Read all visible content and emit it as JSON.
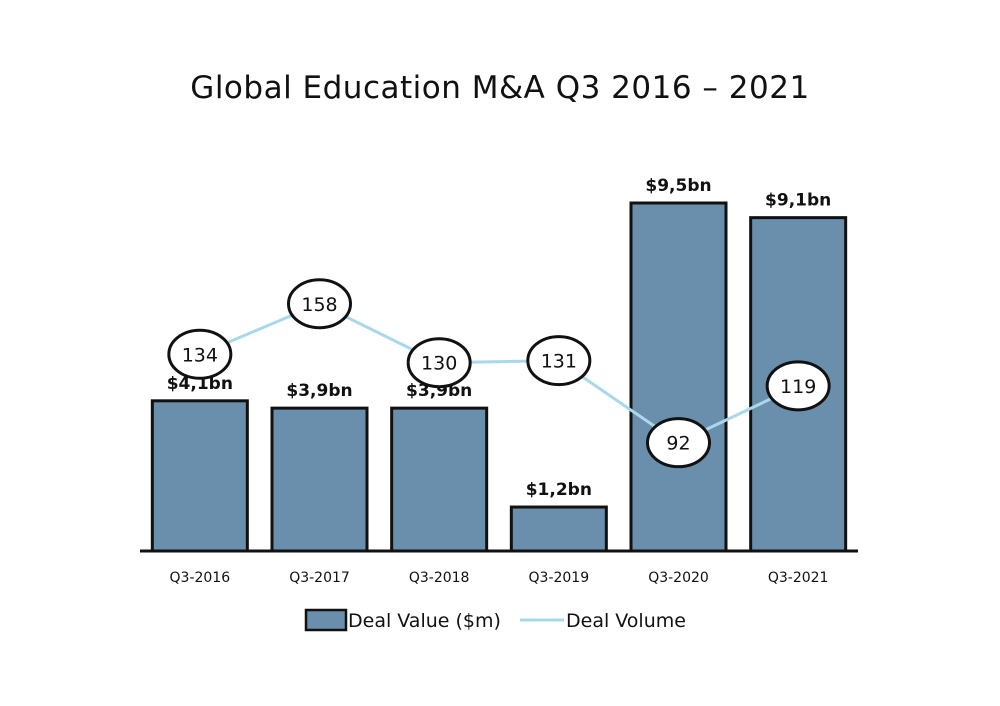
{
  "chart_data": {
    "type": "bar",
    "title": "Global Education M&A Q3 2016 – 2021",
    "xlabel": "",
    "ylabel": "",
    "categories": [
      "Q3-2016",
      "Q3-2017",
      "Q3-2018",
      "Q3-2019",
      "Q3-2020",
      "Q3-2021"
    ],
    "series": [
      {
        "name": "Deal Value ($m)",
        "type": "bar",
        "values": [
          4.1,
          3.9,
          3.9,
          1.2,
          9.5,
          9.1
        ],
        "labels": [
          "$4,1bn",
          "$3,9bn",
          "$3,9bn",
          "$1,2bn",
          "$9,5bn",
          "$9,1bn"
        ],
        "color": "#6a8fac"
      },
      {
        "name": "Deal Volume",
        "type": "line",
        "values": [
          134,
          158,
          130,
          131,
          92,
          119
        ],
        "color": "#a9d8ea"
      }
    ],
    "ylim_value": [
      0,
      9.5
    ],
    "ylim_volume": [
      60,
      175
    ],
    "grid": false,
    "legend_position": "bottom"
  }
}
